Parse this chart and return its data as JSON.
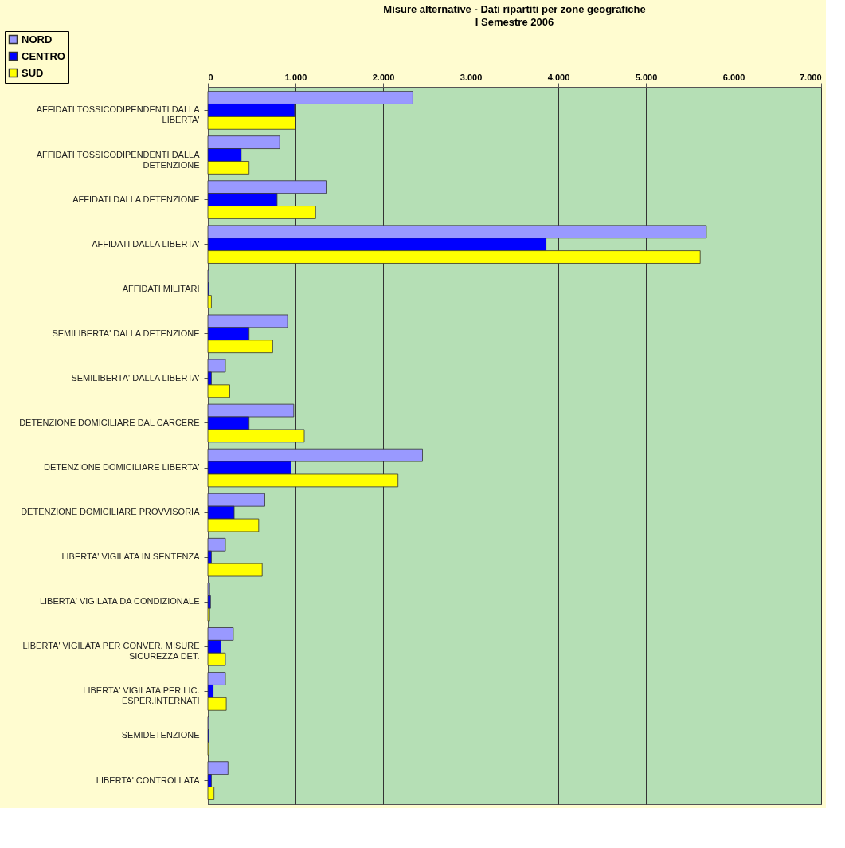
{
  "chart_data": {
    "type": "bar",
    "orientation": "horizontal",
    "title": "Misure alternative - Dati ripartiti per zone geografiche",
    "subtitle": "I Semestre 2006",
    "categories": [
      "AFFIDATI TOSSICODIPENDENTI DALLA LIBERTA'",
      "AFFIDATI TOSSICODIPENDENTI DALLA DETENZIONE",
      "AFFIDATI DALLA DETENZIONE",
      "AFFIDATI DALLA LIBERTA'",
      "AFFIDATI MILITARI",
      "SEMILIBERTA' DALLA DETENZIONE",
      "SEMILIBERTA' DALLA LIBERTA'",
      "DETENZIONE DOMICILIARE DAL CARCERE",
      "DETENZIONE DOMICILIARE LIBERTA'",
      "DETENZIONE DOMICILIARE PROVVISORIA",
      "LIBERTA' VIGILATA IN SENTENZA",
      "LIBERTA' VIGILATA DA CONDIZIONALE",
      "LIBERTA' VIGILATA PER CONVER. MISURE SICUREZZA DET.",
      "LIBERTA' VIGILATA  PER LIC. ESPER.INTERNATI",
      "SEMIDETENZIONE",
      "LIBERTA' CONTROLLATA"
    ],
    "series": [
      {
        "name": "NORD",
        "color": "#9999ff",
        "values": [
          2340,
          820,
          1350,
          5690,
          10,
          910,
          200,
          980,
          2450,
          650,
          200,
          20,
          290,
          200,
          10,
          230
        ]
      },
      {
        "name": "CENTRO",
        "color": "#0000ff",
        "values": [
          990,
          380,
          790,
          3860,
          10,
          470,
          40,
          470,
          950,
          300,
          40,
          30,
          150,
          60,
          10,
          40
        ]
      },
      {
        "name": "SUD",
        "color": "#ffff00",
        "values": [
          1000,
          470,
          1230,
          5620,
          40,
          740,
          250,
          1100,
          2170,
          580,
          620,
          20,
          200,
          210,
          10,
          70
        ]
      }
    ],
    "xlim": [
      0,
      7000
    ],
    "xticks": [
      0,
      {
        "value": 1000,
        "label": "1.000"
      },
      {
        "value": 2000,
        "label": "2.000"
      },
      {
        "value": 3000,
        "label": "3.000"
      },
      {
        "value": 4000,
        "label": "4.000"
      },
      {
        "value": 5000,
        "label": "5.000"
      },
      {
        "value": 6000,
        "label": "6.000"
      },
      {
        "value": 7000,
        "label": "7.000"
      }
    ],
    "grid": "x",
    "legend": "top left"
  }
}
